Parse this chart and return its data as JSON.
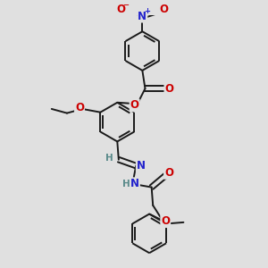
{
  "background_color": "#e0e0e0",
  "bond_color": "#1a1a1a",
  "oxygen_color": "#cc0000",
  "nitrogen_color": "#2222cc",
  "hydrogen_color": "#5a8a8a",
  "figsize": [
    3.0,
    3.0
  ],
  "dpi": 100,
  "xlim": [
    -2.5,
    3.5
  ],
  "ylim": [
    -5.5,
    3.5
  ]
}
